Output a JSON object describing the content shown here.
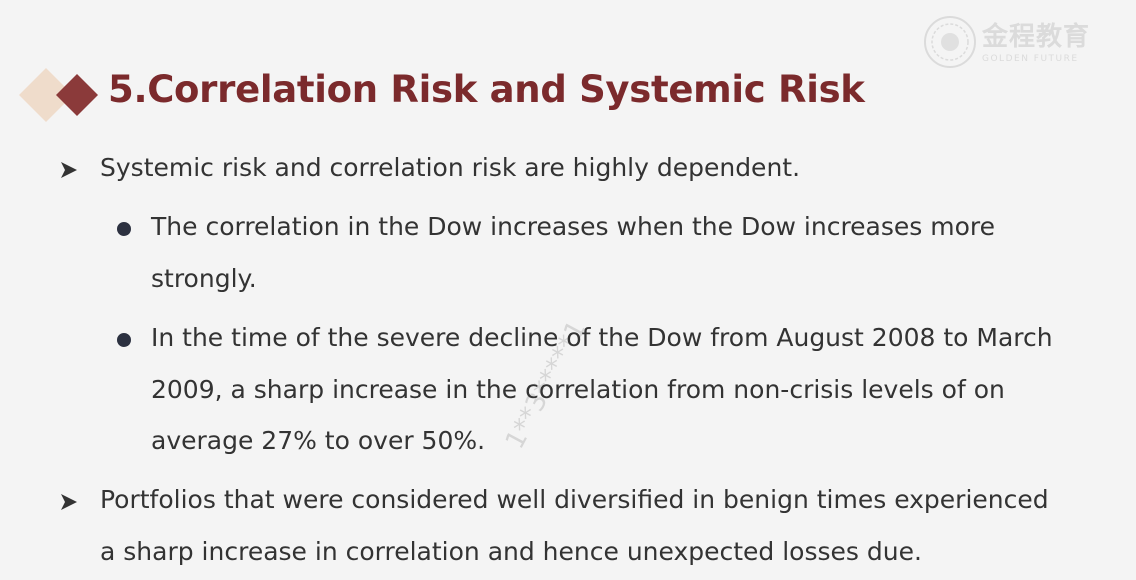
{
  "slide": {
    "title": "5.Correlation Risk and Systemic Risk",
    "logo": {
      "cn": "金程教育",
      "en": "GOLDEN FUTURE"
    },
    "watermark": "1**3*****1"
  },
  "bullets": [
    {
      "level": 1,
      "lines": [
        "Systemic risk and correlation risk are highly dependent."
      ]
    },
    {
      "level": 2,
      "lines": [
        "The correlation in the Dow increases when the Dow increases more",
        "strongly."
      ]
    },
    {
      "level": 2,
      "lines": [
        "In the time of the severe decline of the Dow from August 2008 to March",
        "2009, a sharp increase in the correlation from non-crisis levels of on",
        "average 27% to over 50%."
      ]
    },
    {
      "level": 1,
      "lines": [
        "Portfolios that were considered well diversified in benign times experienced",
        "a sharp increase in correlation and hence unexpected losses due."
      ]
    }
  ],
  "colors": {
    "title": "#7b2a2c",
    "diamond_dark": "#8b3a3a",
    "diamond_light": "#efdccb",
    "text": "#333333"
  }
}
